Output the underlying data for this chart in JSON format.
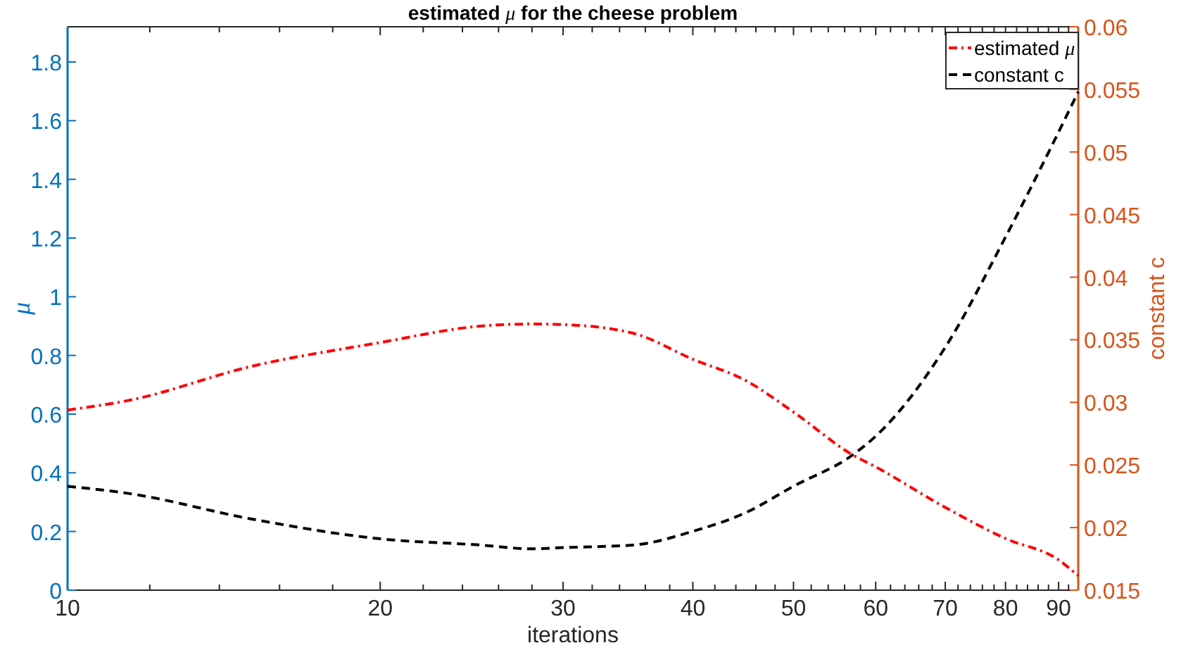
{
  "chart_data": {
    "type": "line",
    "title": "estimated μ for the cheese problem",
    "xlabel": "iterations",
    "ylabel": "μ",
    "y2label": "constant c",
    "log": "x",
    "legend": "top right",
    "grid": false,
    "xlim": [
      10,
      94
    ],
    "xticks": [
      10,
      {
        "value": 12,
        "label": null
      },
      {
        "value": 14,
        "label": null
      },
      {
        "value": 16,
        "label": null
      },
      {
        "value": 18,
        "label": null
      },
      20,
      {
        "value": 22,
        "label": null
      },
      {
        "value": 24,
        "label": null
      },
      {
        "value": 26,
        "label": null
      },
      {
        "value": 28,
        "label": null
      },
      30,
      {
        "value": 32,
        "label": null
      },
      {
        "value": 34,
        "label": null
      },
      {
        "value": 36,
        "label": null
      },
      {
        "value": 38,
        "label": null
      },
      40,
      {
        "value": 42,
        "label": null
      },
      {
        "value": 44,
        "label": null
      },
      {
        "value": 46,
        "label": null
      },
      {
        "value": 48,
        "label": null
      },
      50,
      {
        "value": 52,
        "label": null
      },
      {
        "value": 54,
        "label": null
      },
      {
        "value": 56,
        "label": null
      },
      {
        "value": 58,
        "label": null
      },
      60,
      {
        "value": 62,
        "label": null
      },
      {
        "value": 64,
        "label": null
      },
      {
        "value": 66,
        "label": null
      },
      {
        "value": 68,
        "label": null
      },
      70,
      {
        "value": 72,
        "label": null
      },
      {
        "value": 74,
        "label": null
      },
      {
        "value": 76,
        "label": null
      },
      {
        "value": 78,
        "label": null
      },
      80,
      {
        "value": 82,
        "label": null
      },
      {
        "value": 84,
        "label": null
      },
      {
        "value": 86,
        "label": null
      },
      {
        "value": 88,
        "label": null
      },
      90,
      {
        "value": 92,
        "label": null
      }
    ],
    "ylim": [
      0,
      1.92
    ],
    "yticks": [
      0,
      0.2,
      0.4,
      0.6,
      0.8,
      1,
      1.2,
      1.4,
      1.6,
      1.8
    ],
    "y2lim": [
      0.015,
      0.06
    ],
    "y2ticks": [
      0.015,
      0.02,
      0.025,
      0.03,
      0.035,
      0.04,
      0.045,
      0.05,
      0.055,
      0.06
    ],
    "x": [
      10,
      11.5,
      15,
      20,
      25,
      28,
      30,
      35,
      40,
      45,
      50,
      57,
      60,
      70,
      80,
      90,
      94
    ],
    "series": [
      {
        "name": "estimated μ",
        "color": "#ff0000",
        "line_style": "dashdot",
        "values": [
          0.614,
          0.648,
          0.762,
          0.844,
          0.9,
          0.907,
          0.905,
          0.876,
          0.787,
          0.714,
          0.607,
          0.461,
          0.42,
          0.282,
          0.176,
          0.103,
          0.049
        ]
      },
      {
        "name": "constant c",
        "color": "#000000",
        "line_style": "dashed",
        "axis": "y2",
        "values": [
          0.0233,
          0.0227,
          0.0207,
          0.0191,
          0.0186,
          0.0183,
          0.0184,
          0.0186,
          0.0197,
          0.0212,
          0.0233,
          0.0258,
          0.0273,
          0.0344,
          0.0432,
          0.0516,
          0.0548
        ]
      }
    ]
  }
}
